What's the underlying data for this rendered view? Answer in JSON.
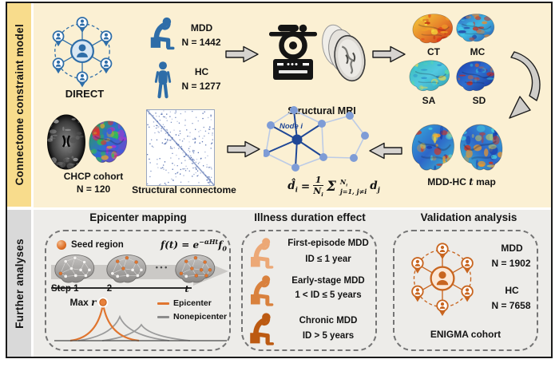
{
  "sidebar": {
    "top_label": "Connectome constraint model",
    "bottom_label": "Further analyses"
  },
  "top": {
    "direct": {
      "label": "DIRECT"
    },
    "cohort": {
      "mdd": "MDD",
      "mdd_n": "N = 1442",
      "hc": "HC",
      "hc_n": "N = 1277"
    },
    "mri": {
      "label": "Structural MRI"
    },
    "maps": {
      "ct": "CT",
      "mc": "MC",
      "sa": "SA",
      "sd": "SD"
    },
    "chcp": {
      "label": "CHCP cohort",
      "n": "N = 120"
    },
    "connectome": {
      "label": "Structural connectome"
    },
    "network": {
      "node_label": "Node i"
    },
    "formula": {
      "lhs": "d̂",
      "lhs_sub": "i",
      "eq": "=",
      "num": "1",
      "den": "N",
      "den_sub": "i",
      "sigma": "Σ",
      "sup": "N",
      "sup_sub": "i",
      "sub": "j=1, j≠i",
      "var": "d",
      "var_sub": "j"
    },
    "tmap": {
      "pre": "MDD-HC ",
      "it": "t",
      "post": " map"
    }
  },
  "bottom": {
    "epicenter": {
      "title": "Epicenter mapping",
      "seed_label": "Seed region",
      "formula": {
        "lhs": "f(t) = e",
        "exp": "−αHt",
        "base": "f",
        "sub": "0"
      },
      "steps": [
        "Step 1",
        "2",
        "t"
      ],
      "dots": "• • •",
      "max_label": "Max ",
      "max_it": "r",
      "legend": [
        {
          "label": "Epicenter",
          "color": "#E0752F"
        },
        {
          "label": "Nonepicenter",
          "color": "#8C8C8C"
        }
      ]
    },
    "illness": {
      "title": "Illness duration effect",
      "groups": [
        {
          "name": "First-episode MDD",
          "range": "ID ≤ 1 year",
          "color": "#ECA876"
        },
        {
          "name": "Early-stage MDD",
          "range": "1 < ID ≤ 5 years",
          "color": "#D9813D"
        },
        {
          "name": "Chronic MDD",
          "range": "ID > 5 years",
          "color": "#BC5A12"
        }
      ]
    },
    "validation": {
      "title": "Validation analysis",
      "mdd": "MDD",
      "mdd_n": "N = 1902",
      "hc": "HC",
      "hc_n": "N = 7658",
      "cohort": "ENIGMA cohort"
    }
  },
  "colors": {
    "accent_blue": "#2E6DA8",
    "accent_orange": "#C8651F",
    "bg_top": "#FBF0D3",
    "bg_bottom": "#EDECE9",
    "sidebar_top": "#F8DC8C",
    "sidebar_bottom": "#D9D9D9"
  },
  "icons": {
    "direct_network": "multi-site-cohort-network",
    "enigma_network": "multi-site-cohort-network",
    "mdd_patient": "seated-depressed-person",
    "healthy_control": "standing-person",
    "mri": "mri-scanner",
    "seed": "seed-region-sphere"
  }
}
